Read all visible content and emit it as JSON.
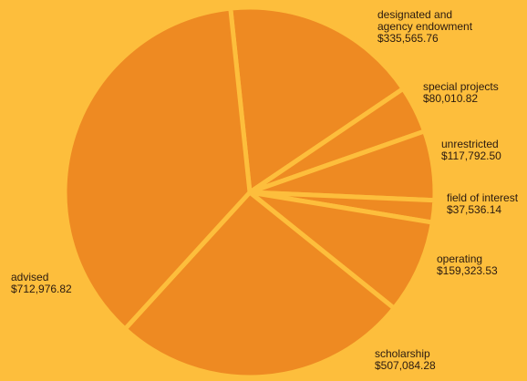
{
  "chart_data": {
    "type": "pie",
    "colors": {
      "background": "#fdbe3c",
      "slice": "#ee8a22",
      "separator": "#fdbe3c",
      "text": "#2a1a10"
    },
    "slices": [
      {
        "label": "designated and agency endowment",
        "label_lines": [
          "designated and",
          "agency endowment"
        ],
        "value": 335565.76,
        "value_text": "$335,565.76"
      },
      {
        "label": "special projects",
        "label_lines": [
          "special projects"
        ],
        "value": 80010.82,
        "value_text": "$80,010.82"
      },
      {
        "label": "unrestricted",
        "label_lines": [
          "unrestricted"
        ],
        "value": 117792.5,
        "value_text": "$117,792.50"
      },
      {
        "label": "field of interest",
        "label_lines": [
          "field of interest"
        ],
        "value": 37536.14,
        "value_text": "$37,536.14"
      },
      {
        "label": "operating",
        "label_lines": [
          "operating"
        ],
        "value": 159323.53,
        "value_text": "$159,323.53"
      },
      {
        "label": "scholarship",
        "label_lines": [
          "scholarship"
        ],
        "value": 507084.28,
        "value_text": "$507,084.28"
      },
      {
        "label": "advised",
        "label_lines": [
          "advised"
        ],
        "value": 712976.82,
        "value_text": "$712,976.82"
      }
    ]
  }
}
